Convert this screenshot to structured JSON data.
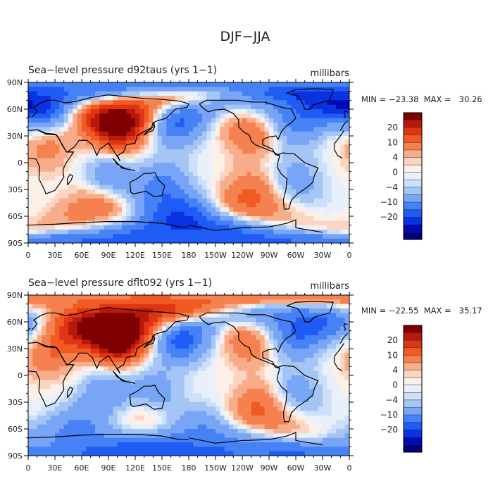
{
  "page_title": "DJF−JJA",
  "colorbar": {
    "colors": [
      "#00007a",
      "#0009b8",
      "#0a32e0",
      "#1e5cf5",
      "#4682f5",
      "#78a5f5",
      "#a5c5f5",
      "#cde0fa",
      "#e8f0fc",
      "#fcf0e8",
      "#fbd5c0",
      "#f7ad8a",
      "#f58150",
      "#f25a23",
      "#e03514",
      "#b8190a",
      "#7f0000"
    ],
    "labels": [
      "20",
      "10",
      "4",
      "0",
      "−4",
      "−10",
      "−20"
    ],
    "color_meaning": "red = higher pressure in DJF than JJA, blue = lower"
  },
  "chart_data": [
    {
      "type": "heatmap",
      "title": "Sea−level pressure d92taus (yrs 1−1)",
      "units": "millibars",
      "stats": "MIN = −23.38  MAX =   30.26",
      "min": -23.38,
      "max": 30.26,
      "x_tick_labels": [
        "0",
        "30E",
        "60E",
        "90E",
        "120E",
        "150E",
        "180",
        "150W",
        "120W",
        "90W",
        "60W",
        "30W",
        "0"
      ],
      "y_tick_labels": [
        "90N",
        "60N",
        "30N",
        "0",
        "30S",
        "60S",
        "90S"
      ],
      "xlim": [
        0,
        360
      ],
      "ylim": [
        -90,
        90
      ],
      "anomalies": [
        {
          "lon": 100,
          "lat": 45,
          "value": 28
        },
        {
          "lon": 165,
          "lat": 50,
          "value": -15
        },
        {
          "lon": 300,
          "lat": 50,
          "value": -12
        },
        {
          "lon": 10,
          "lat": 60,
          "value": -10
        },
        {
          "lon": 250,
          "lat": 35,
          "value": 8
        },
        {
          "lon": 20,
          "lat": 20,
          "value": 6
        },
        {
          "lon": 90,
          "lat": -20,
          "value": -10
        },
        {
          "lon": 150,
          "lat": -25,
          "value": -8
        },
        {
          "lon": 300,
          "lat": -20,
          "value": -6
        },
        {
          "lon": 80,
          "lat": -45,
          "value": 10
        },
        {
          "lon": 250,
          "lat": -40,
          "value": 10
        },
        {
          "lon": 160,
          "lat": -55,
          "value": -6
        },
        {
          "lon": 180,
          "lat": -75,
          "value": -15
        },
        {
          "lon": 20,
          "lat": 75,
          "value": -12
        },
        {
          "lon": 130,
          "lat": 80,
          "value": 6
        }
      ]
    },
    {
      "type": "heatmap",
      "title": "Sea−level pressure dflt092 (yrs 1−1)",
      "units": "millibars",
      "stats": "MIN = −22.55  MAX =   35.17",
      "min": -22.55,
      "max": 35.17,
      "x_tick_labels": [
        "0",
        "30E",
        "60E",
        "90E",
        "120E",
        "150E",
        "180",
        "150W",
        "120W",
        "90W",
        "60W",
        "30W",
        "0"
      ],
      "y_tick_labels": [
        "90N",
        "60N",
        "30N",
        "0",
        "30S",
        "60S",
        "90S"
      ],
      "xlim": [
        0,
        360
      ],
      "ylim": [
        -90,
        90
      ],
      "anomalies": [
        {
          "lon": 100,
          "lat": 45,
          "value": 32
        },
        {
          "lon": 40,
          "lat": 55,
          "value": 14
        },
        {
          "lon": 170,
          "lat": 45,
          "value": -16
        },
        {
          "lon": 300,
          "lat": 50,
          "value": -14
        },
        {
          "lon": 10,
          "lat": 60,
          "value": -13
        },
        {
          "lon": 250,
          "lat": 40,
          "value": 8
        },
        {
          "lon": 20,
          "lat": 25,
          "value": 7
        },
        {
          "lon": 90,
          "lat": -20,
          "value": -8
        },
        {
          "lon": 140,
          "lat": -20,
          "value": -7
        },
        {
          "lon": 300,
          "lat": -20,
          "value": -6
        },
        {
          "lon": 120,
          "lat": -45,
          "value": 6
        },
        {
          "lon": 260,
          "lat": -40,
          "value": 10
        },
        {
          "lon": 200,
          "lat": -70,
          "value": -12
        },
        {
          "lon": 60,
          "lat": -65,
          "value": -10
        },
        {
          "lon": 150,
          "lat": 80,
          "value": 10
        }
      ]
    }
  ]
}
